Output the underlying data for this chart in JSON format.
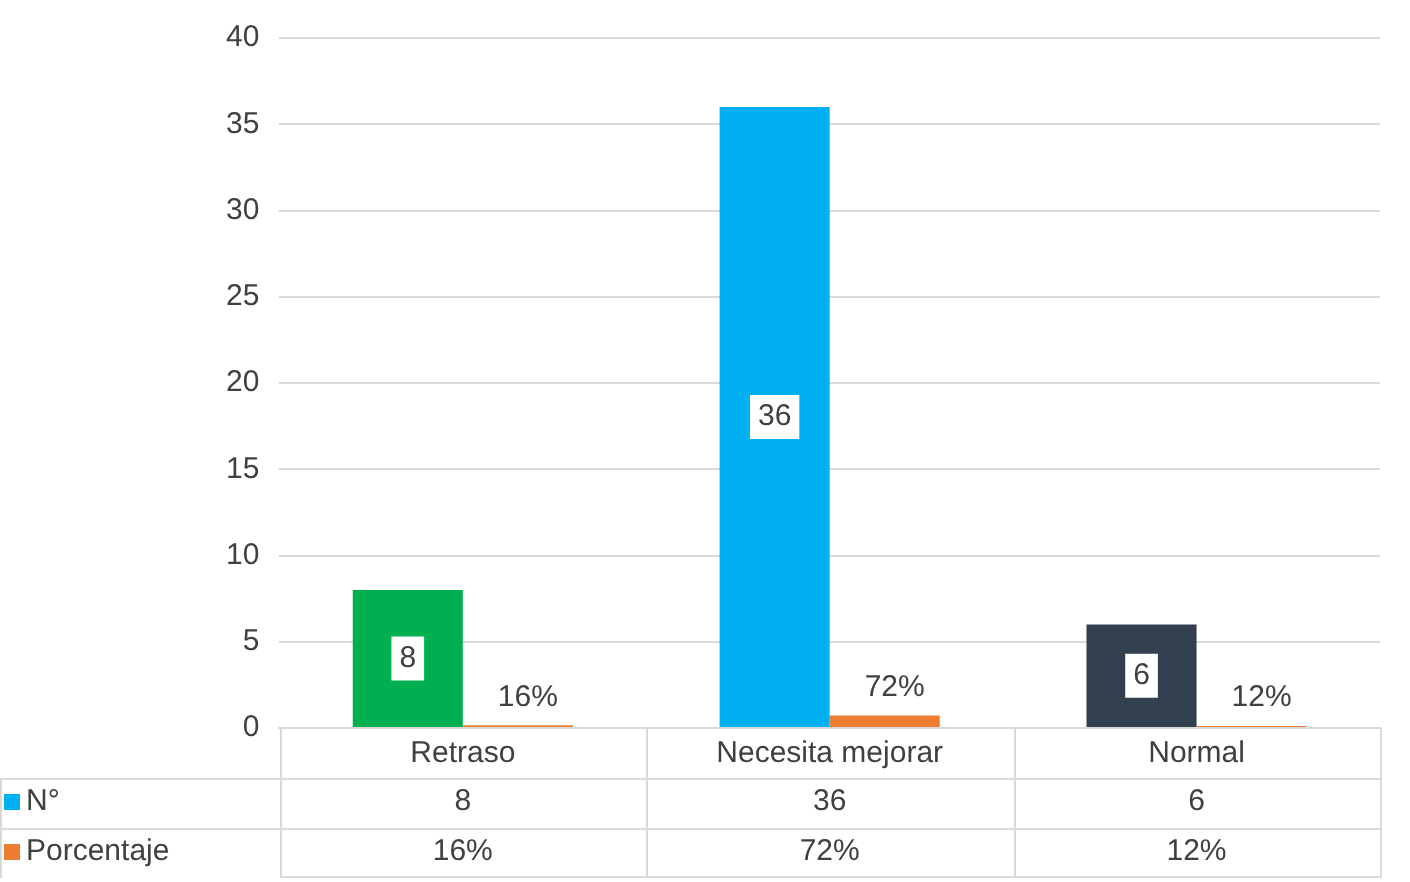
{
  "chart_data": {
    "type": "bar",
    "categories": [
      "Retraso",
      "Necesita mejorar",
      "Normal"
    ],
    "series": [
      {
        "name": "N°",
        "color": "#00b0f0",
        "colors": [
          "#00b050",
          "#00b0f0",
          "#323f4f"
        ],
        "values": [
          8,
          36,
          6
        ],
        "value_labels": [
          "8",
          "36",
          "6"
        ]
      },
      {
        "name": "Porcentaje",
        "color": "#ed7d31",
        "values": [
          0.16,
          0.72,
          0.12
        ],
        "value_labels": [
          "16%",
          "72%",
          "12%"
        ]
      }
    ],
    "ylim": [
      0,
      40
    ],
    "yticks": [
      0,
      5,
      10,
      15,
      20,
      25,
      30,
      35,
      40
    ],
    "grid": "y",
    "legend": "bottom left"
  }
}
